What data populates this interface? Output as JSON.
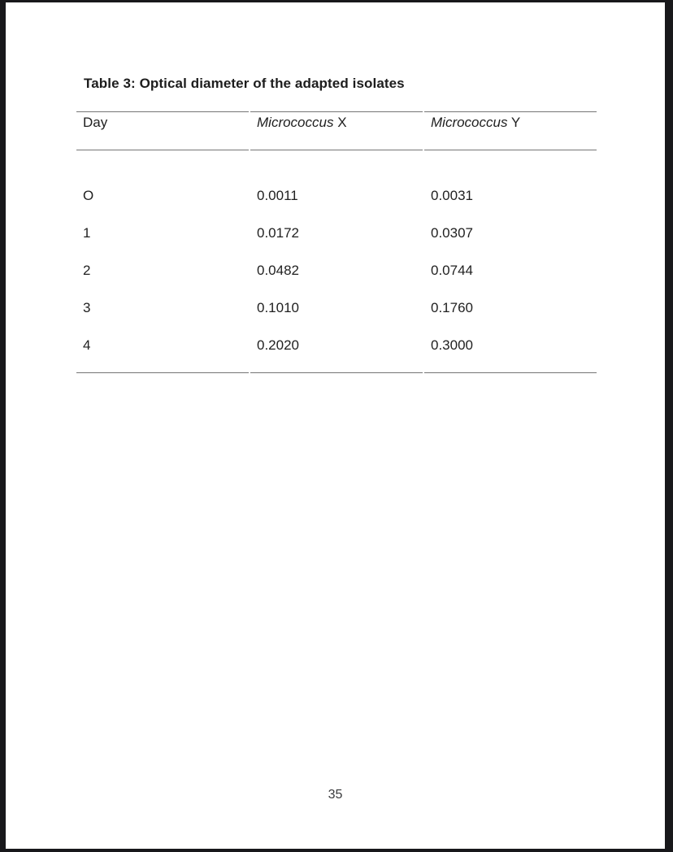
{
  "colors": {
    "frame": "#18181b",
    "page_background": "#ffffff",
    "text": "#212121",
    "rule": "#757575"
  },
  "document": {
    "table_caption": "Table 3: Optical diameter of the adapted isolates",
    "table": {
      "columns": [
        {
          "italic": "",
          "regular": "Day"
        },
        {
          "italic": "Micrococcus",
          "regular": " X"
        },
        {
          "italic": "Micrococcus",
          "regular": " Y"
        }
      ],
      "rows": [
        [
          "O",
          "0.0011",
          "0.0031"
        ],
        [
          "1",
          "0.0172",
          "0.0307"
        ],
        [
          "2",
          "0.0482",
          "0.0744"
        ],
        [
          "3",
          "0.1010",
          "0.1760"
        ],
        [
          "4",
          "0.2020",
          "0.3000"
        ]
      ]
    },
    "page_number": "35"
  }
}
